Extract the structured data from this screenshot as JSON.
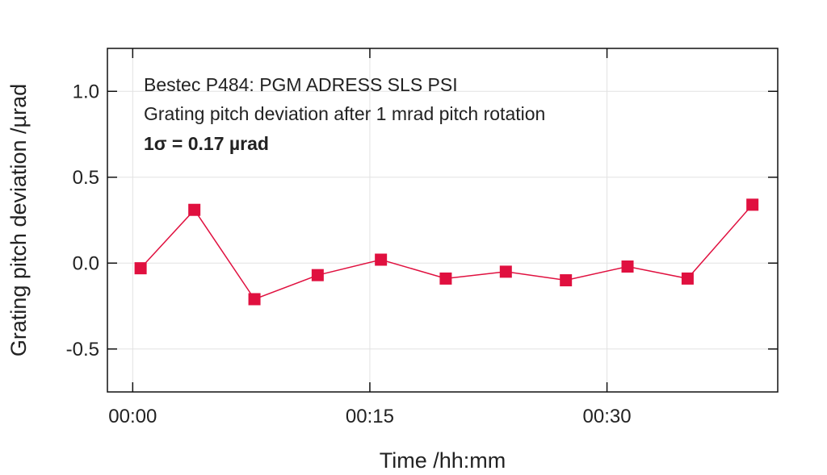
{
  "chart_data": {
    "type": "line",
    "xlabel": "Time /hh:mm",
    "ylabel": "Grating pitch deviation /µrad",
    "ylim": [
      -0.75,
      1.25
    ],
    "xlim_minutes": [
      -1.6,
      40.8
    ],
    "x_ticks": [
      {
        "minutes": 0,
        "label": "00:00"
      },
      {
        "minutes": 15,
        "label": "00:15"
      },
      {
        "minutes": 30,
        "label": "00:30"
      }
    ],
    "y_ticks": [
      {
        "value": 1.0,
        "label": "1.0"
      },
      {
        "value": 0.5,
        "label": "0.5"
      },
      {
        "value": 0.0,
        "label": "0.0"
      },
      {
        "value": -0.5,
        "label": "-0.5"
      }
    ],
    "grid": true,
    "annotations": [
      "Bestec P484: PGM ADRESS SLS PSI",
      "Grating pitch deviation after 1 mrad pitch rotation",
      "1σ = 0.17 µrad"
    ],
    "series": [
      {
        "color": "#e0103f",
        "marker": "square",
        "x_minutes": [
          0.5,
          3.9,
          7.7,
          11.7,
          15.7,
          19.8,
          23.6,
          27.4,
          31.3,
          35.1,
          39.2
        ],
        "values": [
          -0.03,
          0.31,
          -0.21,
          -0.07,
          0.02,
          -0.09,
          -0.05,
          -0.1,
          -0.02,
          -0.09,
          0.34
        ]
      }
    ]
  }
}
